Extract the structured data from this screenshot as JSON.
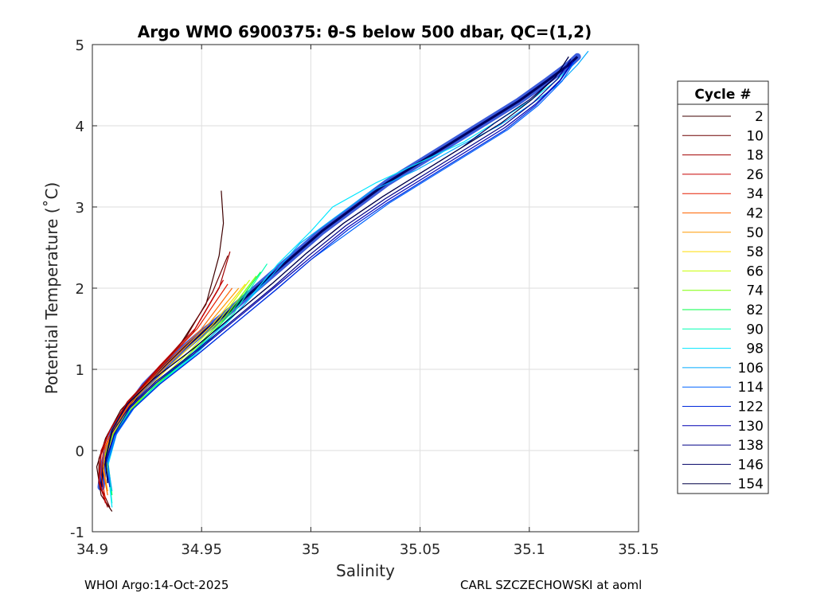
{
  "chart_data": {
    "type": "line",
    "title": "Argo WMO 6900375: θ-S below 500 dbar,  QC=(1,2)",
    "xlabel": "Salinity",
    "ylabel": "Potential Temperature (˚C)",
    "xlim": [
      34.9,
      35.15
    ],
    "ylim": [
      -1,
      5
    ],
    "x_ticks": [
      "34.9",
      "34.95",
      "35",
      "35.05",
      "35.1",
      "35.15"
    ],
    "x_tick_values": [
      34.9,
      34.95,
      35.0,
      35.05,
      35.1,
      35.15
    ],
    "y_ticks": [
      "-1",
      "0",
      "1",
      "2",
      "3",
      "4",
      "5"
    ],
    "y_tick_values": [
      -1,
      0,
      1,
      2,
      3,
      4,
      5
    ],
    "grid": true,
    "legend_title": "Cycle #",
    "legend_placement": "right-outside",
    "main_curve": {
      "s": [
        34.904,
        34.905,
        34.907,
        34.91,
        34.916,
        34.924,
        34.935,
        34.948,
        34.962,
        34.975,
        34.99,
        35.005,
        35.02,
        35.035,
        35.05,
        35.065,
        35.08,
        35.095,
        35.108,
        35.118,
        35.122
      ],
      "t": [
        -0.45,
        -0.2,
        0.0,
        0.25,
        0.5,
        0.8,
        1.1,
        1.4,
        1.7,
        2.0,
        2.35,
        2.7,
        3.0,
        3.3,
        3.55,
        3.8,
        4.05,
        4.3,
        4.55,
        4.75,
        4.85
      ]
    },
    "series": [
      {
        "name": "2",
        "color": "#3f0000",
        "s": [
          34.909,
          34.904,
          34.902,
          34.906,
          34.913,
          34.925,
          34.94,
          34.952,
          34.958,
          34.96,
          34.959
        ],
        "t": [
          -0.75,
          -0.55,
          -0.2,
          0.15,
          0.5,
          0.85,
          1.3,
          1.8,
          2.4,
          2.8,
          3.2
        ]
      },
      {
        "name": "10",
        "color": "#6e0000",
        "s": [
          34.908,
          34.903,
          34.903,
          34.907,
          34.915,
          34.928,
          34.943,
          34.955,
          34.962
        ],
        "t": [
          -0.7,
          -0.4,
          -0.1,
          0.2,
          0.55,
          0.95,
          1.4,
          1.95,
          2.4
        ]
      },
      {
        "name": "18",
        "color": "#a00000",
        "s": [
          34.907,
          34.903,
          34.904,
          34.908,
          34.916,
          34.93,
          34.946,
          34.958,
          34.963
        ],
        "t": [
          -0.7,
          -0.4,
          -0.05,
          0.25,
          0.6,
          1.0,
          1.45,
          2.0,
          2.45
        ]
      },
      {
        "name": "26",
        "color": "#c80000",
        "s": [
          34.906,
          34.903,
          34.904,
          34.909,
          34.917,
          34.931,
          34.947,
          34.96
        ],
        "t": [
          -0.65,
          -0.35,
          0.0,
          0.3,
          0.62,
          1.05,
          1.5,
          2.1
        ]
      },
      {
        "name": "34",
        "color": "#e61e00",
        "s": [
          34.906,
          34.904,
          34.905,
          34.91,
          34.918,
          34.932,
          34.948,
          34.962
        ],
        "t": [
          -0.6,
          -0.3,
          0.0,
          0.3,
          0.62,
          1.05,
          1.5,
          2.05
        ]
      },
      {
        "name": "42",
        "color": "#ff6400",
        "s": [
          34.907,
          34.905,
          34.906,
          34.911,
          34.919,
          34.933,
          34.95,
          34.964
        ],
        "t": [
          -0.55,
          -0.25,
          0.05,
          0.33,
          0.64,
          1.05,
          1.5,
          2.0
        ]
      },
      {
        "name": "50",
        "color": "#ff9a00",
        "s": [
          34.907,
          34.905,
          34.907,
          34.912,
          34.92,
          34.935,
          34.952,
          34.967
        ],
        "t": [
          -0.5,
          -0.2,
          0.08,
          0.35,
          0.65,
          1.07,
          1.52,
          2.0
        ]
      },
      {
        "name": "58",
        "color": "#ffdc00",
        "s": [
          34.908,
          34.906,
          34.908,
          34.913,
          34.922,
          34.937,
          34.955,
          34.97
        ],
        "t": [
          -0.45,
          -0.15,
          0.12,
          0.38,
          0.67,
          1.08,
          1.55,
          2.05
        ]
      },
      {
        "name": "66",
        "color": "#c8ff00",
        "s": [
          34.908,
          34.906,
          34.909,
          34.914,
          34.924,
          34.94,
          34.958,
          34.972
        ],
        "t": [
          -0.4,
          -0.1,
          0.15,
          0.4,
          0.7,
          1.1,
          1.6,
          2.1
        ]
      },
      {
        "name": "74",
        "color": "#7dff00",
        "s": [
          34.908,
          34.906,
          34.909,
          34.915,
          34.925,
          34.942,
          34.96,
          34.975
        ],
        "t": [
          -0.4,
          -0.05,
          0.18,
          0.42,
          0.72,
          1.12,
          1.62,
          2.15
        ]
      },
      {
        "name": "82",
        "color": "#00ff46",
        "s": [
          34.909,
          34.907,
          34.91,
          34.916,
          34.927,
          34.944,
          34.962,
          34.977
        ],
        "t": [
          -0.55,
          -0.1,
          0.2,
          0.45,
          0.75,
          1.15,
          1.65,
          2.2
        ]
      },
      {
        "name": "90",
        "color": "#00ffb4",
        "s": [
          34.909,
          34.907,
          34.91,
          34.917,
          34.928,
          34.946,
          34.965,
          34.98
        ],
        "t": [
          -0.65,
          -0.15,
          0.2,
          0.47,
          0.77,
          1.17,
          1.7,
          2.3
        ]
      },
      {
        "name": "98",
        "color": "#00e6ff",
        "s": [
          34.909,
          34.907,
          34.911,
          34.918,
          34.93,
          34.948,
          34.968,
          34.985,
          35.0,
          35.01,
          35.03,
          35.05,
          35.07,
          35.085,
          35.1,
          35.112,
          35.12
        ],
        "t": [
          -0.7,
          -0.2,
          0.2,
          0.5,
          0.8,
          1.2,
          1.75,
          2.3,
          2.7,
          3.0,
          3.3,
          3.55,
          3.8,
          4.05,
          4.3,
          4.55,
          4.75
        ]
      },
      {
        "name": "106",
        "color": "#00aaff",
        "s": [
          34.909,
          34.907,
          34.911,
          34.918,
          34.93,
          34.948,
          34.966,
          34.982,
          34.995,
          35.01,
          35.028,
          35.048,
          35.068,
          35.086,
          35.1,
          35.113,
          35.122,
          35.127
        ],
        "t": [
          -0.5,
          -0.15,
          0.25,
          0.55,
          0.85,
          1.25,
          1.7,
          2.15,
          2.55,
          2.85,
          3.2,
          3.45,
          3.75,
          4.0,
          4.25,
          4.5,
          4.75,
          4.92
        ]
      },
      {
        "name": "114",
        "color": "#0064ff",
        "s": [
          34.908,
          34.907,
          34.911,
          34.919,
          34.931,
          34.949,
          34.967,
          34.985,
          35.0,
          35.018,
          35.036,
          35.054,
          35.072,
          35.09,
          35.104,
          35.115,
          35.121
        ],
        "t": [
          -0.45,
          -0.15,
          0.2,
          0.52,
          0.82,
          1.2,
          1.6,
          2.0,
          2.35,
          2.7,
          3.05,
          3.35,
          3.65,
          3.95,
          4.25,
          4.55,
          4.8
        ]
      },
      {
        "name": "122",
        "color": "#0028dc",
        "s": [
          34.908,
          34.906,
          34.91,
          34.918,
          34.93,
          34.948,
          34.966,
          34.984,
          35.0,
          35.017,
          35.035,
          35.053,
          35.071,
          35.089,
          35.103,
          35.114,
          35.12
        ],
        "t": [
          -0.45,
          -0.18,
          0.18,
          0.5,
          0.8,
          1.18,
          1.58,
          1.98,
          2.35,
          2.72,
          3.05,
          3.35,
          3.65,
          3.95,
          4.25,
          4.55,
          4.78
        ]
      },
      {
        "name": "130",
        "color": "#0000b4",
        "s": [
          34.907,
          34.906,
          34.91,
          34.917,
          34.929,
          34.947,
          34.965,
          34.983,
          35.0,
          35.017,
          35.035,
          35.053,
          35.071,
          35.089,
          35.103,
          35.114,
          35.12
        ],
        "t": [
          -0.4,
          -0.15,
          0.2,
          0.52,
          0.83,
          1.2,
          1.6,
          2.0,
          2.38,
          2.75,
          3.08,
          3.38,
          3.68,
          3.98,
          4.27,
          4.56,
          4.8
        ]
      },
      {
        "name": "138",
        "color": "#000087",
        "s": [
          34.907,
          34.906,
          34.909,
          34.917,
          34.929,
          34.947,
          34.965,
          34.983,
          34.999,
          35.016,
          35.034,
          35.052,
          35.07,
          35.088,
          35.102,
          35.113,
          35.119
        ],
        "t": [
          -0.4,
          -0.12,
          0.22,
          0.54,
          0.85,
          1.22,
          1.62,
          2.02,
          2.4,
          2.77,
          3.1,
          3.4,
          3.7,
          4.0,
          4.29,
          4.58,
          4.82
        ]
      },
      {
        "name": "146",
        "color": "#000064",
        "s": [
          34.907,
          34.906,
          34.909,
          34.916,
          34.928,
          34.946,
          34.964,
          34.982,
          34.998,
          35.015,
          35.033,
          35.051,
          35.069,
          35.084,
          35.1,
          35.112,
          35.118
        ],
        "t": [
          -0.4,
          -0.1,
          0.25,
          0.57,
          0.88,
          1.25,
          1.65,
          2.05,
          2.43,
          2.8,
          3.13,
          3.43,
          3.73,
          4.03,
          4.32,
          4.6,
          4.85
        ]
      },
      {
        "name": "154",
        "color": "#000046",
        "s": [
          34.907,
          34.906,
          34.909,
          34.916,
          34.928,
          34.946,
          34.964,
          34.982,
          34.998,
          35.015,
          35.033,
          35.051,
          35.069,
          35.087,
          35.101,
          35.112,
          35.118
        ],
        "t": [
          -0.4,
          -0.1,
          0.25,
          0.57,
          0.88,
          1.25,
          1.65,
          2.05,
          2.43,
          2.8,
          3.13,
          3.43,
          3.73,
          4.03,
          4.32,
          4.6,
          4.85
        ]
      }
    ]
  },
  "footer": {
    "left": "WHOI Argo:14-Oct-2025",
    "right": "CARL SZCZECHOWSKI at aoml"
  }
}
